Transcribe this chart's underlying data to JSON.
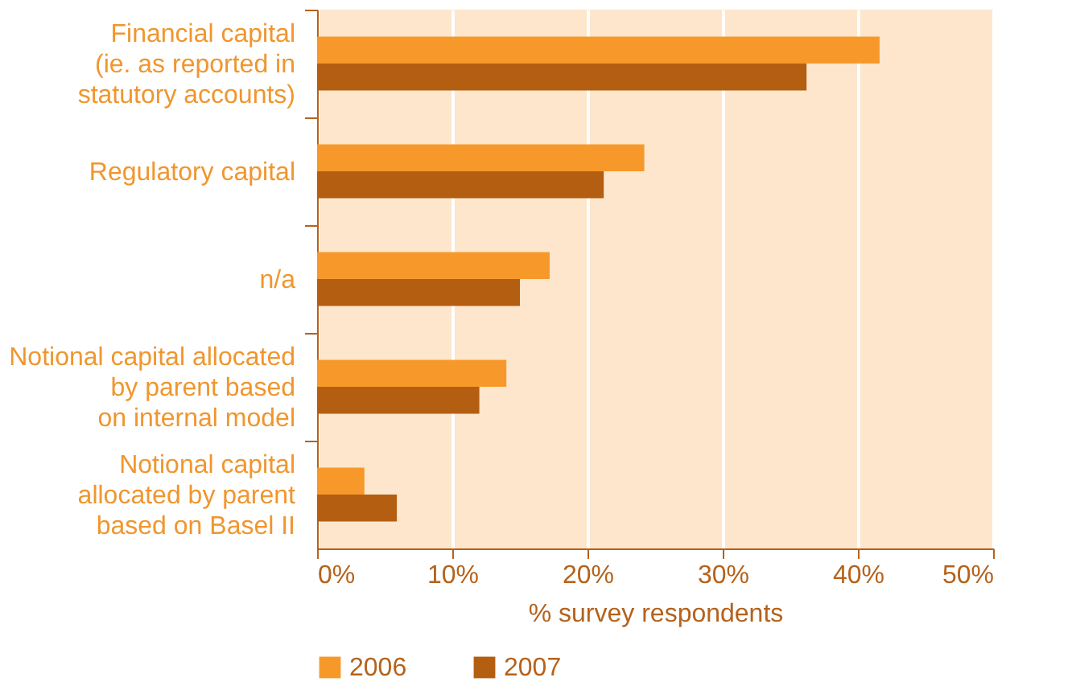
{
  "chart_data": {
    "type": "bar",
    "orientation": "horizontal",
    "xlabel": "% survey respondents",
    "categories": [
      "Financial capital\n(ie. as reported in\nstatutory accounts)",
      "Regulatory capital",
      "n/a",
      "Notional capital allocated\nby parent based\non internal model",
      "Notional capital\nallocated by parent\nbased on Basel II"
    ],
    "series": [
      {
        "name": "2006",
        "color": "#f7992a",
        "values": [
          41.6,
          24.2,
          17.2,
          14.0,
          3.5
        ]
      },
      {
        "name": "2007",
        "color": "#b45e12",
        "values": [
          36.2,
          21.2,
          15.0,
          12.0,
          5.9
        ]
      }
    ],
    "xlim": [
      0,
      50
    ],
    "xticks": [
      {
        "value": 0,
        "label": "0%"
      },
      {
        "value": 10,
        "label": "10%"
      },
      {
        "value": 20,
        "label": "20%"
      },
      {
        "value": 30,
        "label": "30%"
      },
      {
        "value": 40,
        "label": "40%"
      },
      {
        "value": 50,
        "label": "50%"
      }
    ],
    "grid": "x",
    "legend": "bottom"
  }
}
